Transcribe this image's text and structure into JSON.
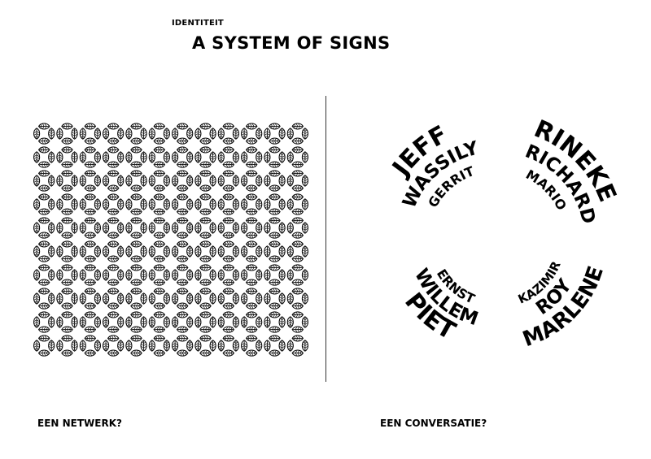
{
  "header": {
    "section_label": "IDENTITEIT",
    "title": "A SYSTEM OF SIGNS"
  },
  "captions": {
    "left": "EEN NETWERK?",
    "right": "EEN CONVERSATIE?"
  },
  "pattern": {
    "icon": "leaf-ring-pattern",
    "color": "#000000",
    "columns": 12,
    "rows": 10
  },
  "conversation": {
    "color": "#000000",
    "groups": [
      {
        "names": [
          "JEFF",
          "WASSILY",
          "GERRIT"
        ]
      },
      {
        "names": [
          "RINEKE",
          "RICHARD",
          "MARIO"
        ]
      },
      {
        "names": [
          "MARLENE",
          "ROY",
          "KAZIMIR"
        ]
      },
      {
        "names": [
          "PIET",
          "WILLEM",
          "ERNST"
        ]
      }
    ]
  }
}
